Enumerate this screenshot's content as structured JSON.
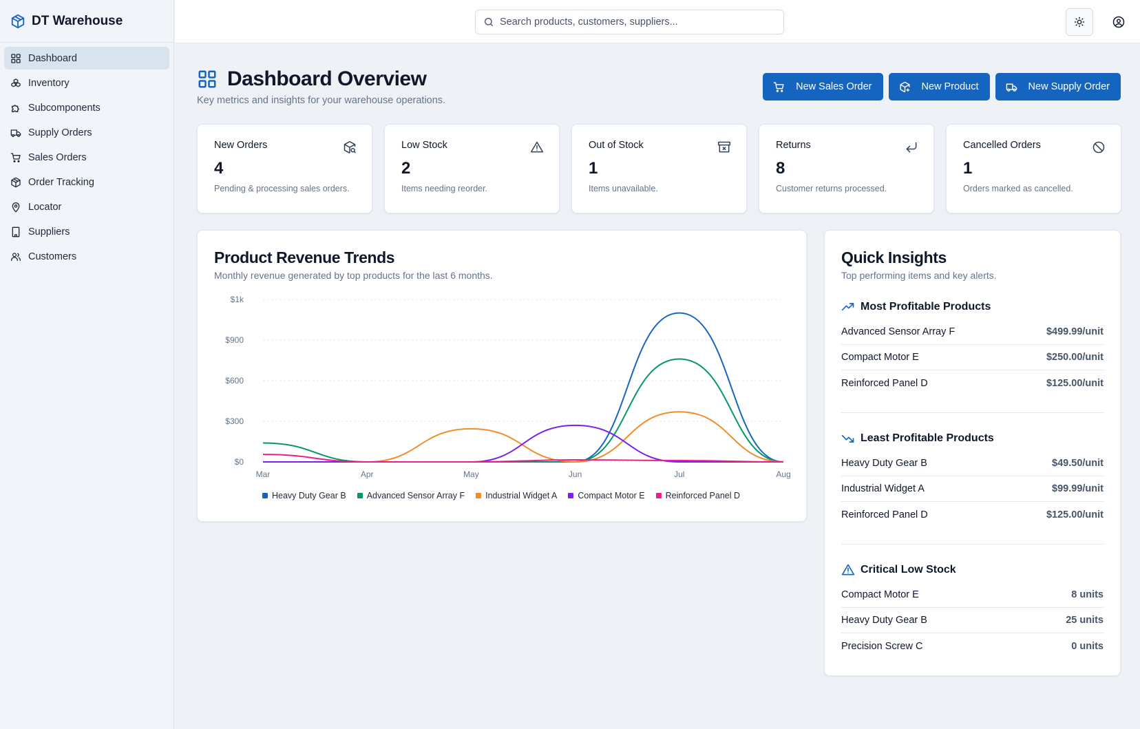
{
  "brand": {
    "title": "DT Warehouse"
  },
  "sidebar": {
    "items": [
      {
        "label": "Dashboard",
        "icon": "grid-icon",
        "active": true
      },
      {
        "label": "Inventory",
        "icon": "boxes-icon"
      },
      {
        "label": "Subcomponents",
        "icon": "puzzle-icon"
      },
      {
        "label": "Supply Orders",
        "icon": "truck-icon"
      },
      {
        "label": "Sales Orders",
        "icon": "cart-icon"
      },
      {
        "label": "Order Tracking",
        "icon": "package-icon"
      },
      {
        "label": "Locator",
        "icon": "map-pin-icon"
      },
      {
        "label": "Suppliers",
        "icon": "building-icon"
      },
      {
        "label": "Customers",
        "icon": "users-icon"
      }
    ]
  },
  "search": {
    "placeholder": "Search products, customers, suppliers..."
  },
  "page": {
    "title": "Dashboard Overview",
    "subtitle": "Key metrics and insights for your warehouse operations."
  },
  "actions": {
    "new_sales_order": "New Sales Order",
    "new_product": "New Product",
    "new_supply_order": "New Supply Order"
  },
  "stats": [
    {
      "label": "New Orders",
      "value": "4",
      "desc": "Pending & processing sales orders.",
      "icon": "package-search-icon"
    },
    {
      "label": "Low Stock",
      "value": "2",
      "desc": "Items needing reorder.",
      "icon": "warning-triangle-icon"
    },
    {
      "label": "Out of Stock",
      "value": "1",
      "desc": "Items unavailable.",
      "icon": "archive-x-icon"
    },
    {
      "label": "Returns",
      "value": "8",
      "desc": "Customer returns processed.",
      "icon": "corner-down-left-icon"
    },
    {
      "label": "Cancelled Orders",
      "value": "1",
      "desc": "Orders marked as cancelled.",
      "icon": "ban-icon"
    }
  ],
  "revenue_card": {
    "title": "Product Revenue Trends",
    "subtitle": "Monthly revenue generated by top products for the last 6 months."
  },
  "chart_data": {
    "type": "line",
    "categories": [
      "Mar",
      "Apr",
      "May",
      "Jun",
      "Jul",
      "Aug"
    ],
    "y_ticks": [
      "$0",
      "$300",
      "$600",
      "$900",
      "$1k"
    ],
    "ylim": [
      0,
      1200
    ],
    "grid": true,
    "legend_position": "bottom",
    "series": [
      {
        "name": "Heavy Duty Gear B",
        "color": "#1565c0",
        "values": [
          0,
          0,
          0,
          0,
          1100,
          0
        ]
      },
      {
        "name": "Advanced Sensor Array F",
        "color": "#059669",
        "values": [
          140,
          0,
          0,
          0,
          760,
          0
        ]
      },
      {
        "name": "Industrial Widget A",
        "color": "#f28c28",
        "values": [
          0,
          0,
          245,
          0,
          370,
          0
        ]
      },
      {
        "name": "Compact Motor E",
        "color": "#7c1ff0",
        "values": [
          0,
          0,
          0,
          270,
          0,
          0
        ]
      },
      {
        "name": "Reinforced Panel D",
        "color": "#ec1e8c",
        "values": [
          55,
          0,
          0,
          15,
          10,
          0
        ]
      }
    ]
  },
  "insights": {
    "title": "Quick Insights",
    "subtitle": "Top performing items and key alerts.",
    "most_profitable": {
      "title": "Most Profitable Products",
      "items": [
        {
          "name": "Advanced Sensor Array F",
          "value": "$499.99/unit"
        },
        {
          "name": "Compact Motor E",
          "value": "$250.00/unit"
        },
        {
          "name": "Reinforced Panel D",
          "value": "$125.00/unit"
        }
      ]
    },
    "least_profitable": {
      "title": "Least Profitable Products",
      "items": [
        {
          "name": "Heavy Duty Gear B",
          "value": "$49.50/unit"
        },
        {
          "name": "Industrial Widget A",
          "value": "$99.99/unit"
        },
        {
          "name": "Reinforced Panel D",
          "value": "$125.00/unit"
        }
      ]
    },
    "critical_low": {
      "title": "Critical Low Stock",
      "items": [
        {
          "name": "Compact Motor E",
          "value": "8 units"
        },
        {
          "name": "Heavy Duty Gear B",
          "value": "25 units"
        },
        {
          "name": "Precision Screw C",
          "value": "0 units"
        }
      ]
    }
  },
  "colors": {
    "accent": "#1565c0",
    "background": "#eef2f7",
    "muted_text": "#64748b"
  }
}
